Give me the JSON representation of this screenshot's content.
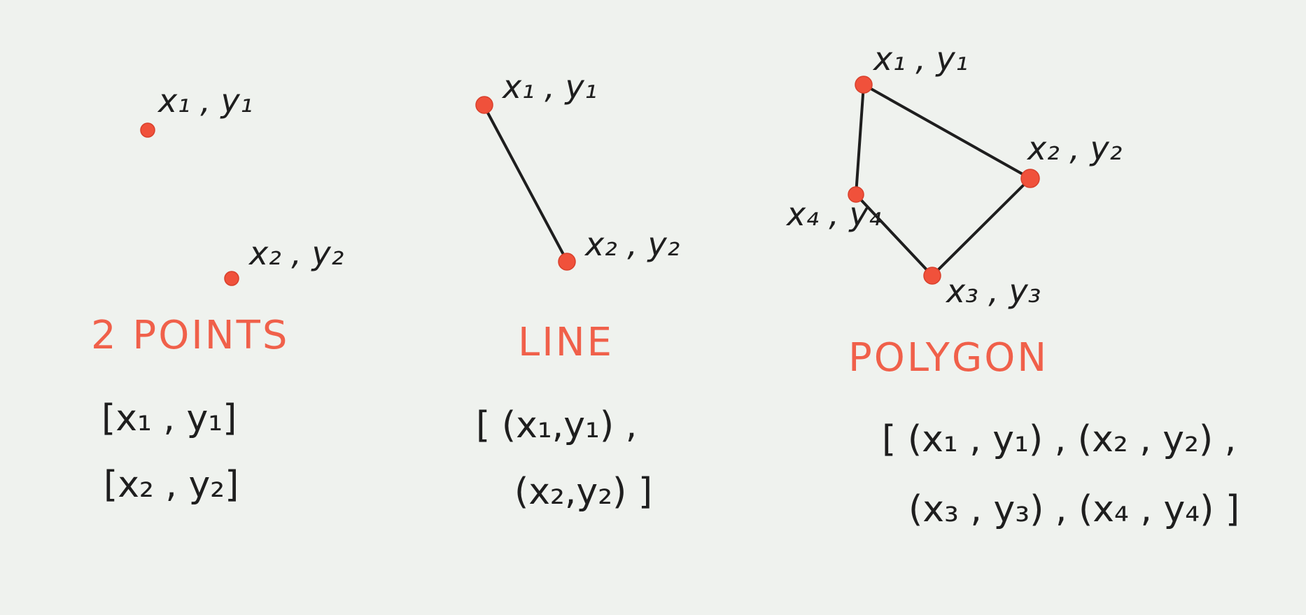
{
  "colors": {
    "background": "#eff2ee",
    "ink": "#1e1e1e",
    "accent": "#f0513b",
    "caption": "#f0604a"
  },
  "points_panel": {
    "caption": "2 POINTS",
    "p1_label": "x₁ , y₁",
    "p2_label": "x₂ , y₂",
    "code_line1": "[x₁ , y₁]",
    "code_line2": "[x₂ , y₂]"
  },
  "line_panel": {
    "caption": "LINE",
    "p1_label": "x₁ , y₁",
    "p2_label": "x₂ , y₂",
    "code_line1": "[ (x₁,y₁) ,",
    "code_line2": "(x₂,y₂) ]"
  },
  "polygon_panel": {
    "caption": "POLYGON",
    "p1_label": "x₁ , y₁",
    "p2_label": "x₂ , y₂",
    "p3_label": "x₃ , y₃",
    "p4_label": "x₄ , y₄",
    "code_line1": "[ (x₁ , y₁) , (x₂ , y₂) ,",
    "code_line2": "(x₃ , y₃) , (x₄ , y₄) ]"
  }
}
